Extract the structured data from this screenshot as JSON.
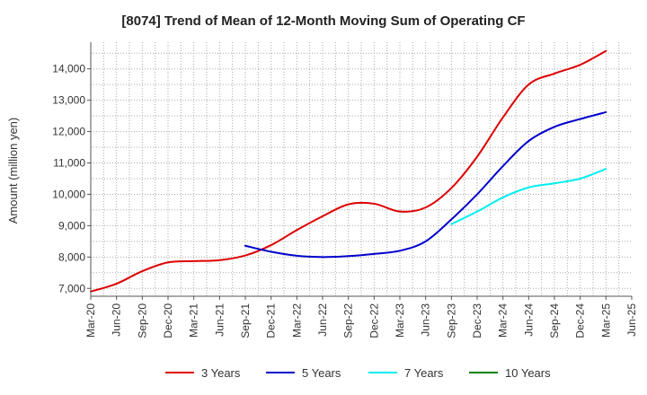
{
  "chart_data": {
    "type": "line",
    "title": "[8074]  Trend of Mean of 12-Month Moving Sum of Operating CF",
    "xlabel": "",
    "ylabel": "Amount (million yen)",
    "ylim": [
      6750,
      14850
    ],
    "yticks": [
      7000,
      8000,
      9000,
      10000,
      11000,
      12000,
      13000,
      14000
    ],
    "ytick_labels": [
      "7,000",
      "8,000",
      "9,000",
      "10,000",
      "11,000",
      "12,000",
      "13,000",
      "14,000"
    ],
    "x_tick_labels": [
      "Mar-20",
      "Jun-20",
      "Sep-20",
      "Dec-20",
      "Mar-21",
      "Jun-21",
      "Sep-21",
      "Dec-21",
      "Mar-22",
      "Jun-22",
      "Sep-22",
      "Dec-22",
      "Mar-23",
      "Jun-23",
      "Sep-23",
      "Dec-23",
      "Mar-24",
      "Jun-24",
      "Sep-24",
      "Dec-24",
      "Mar-25",
      "Jun-25"
    ],
    "grid": true,
    "legend_position": "bottom",
    "series": [
      {
        "name": "3 Years",
        "color": "#dd0000",
        "points": [
          [
            0,
            6900
          ],
          [
            1,
            7150
          ],
          [
            2,
            7550
          ],
          [
            3,
            7830
          ],
          [
            4,
            7870
          ],
          [
            5,
            7900
          ],
          [
            6,
            8050
          ],
          [
            7,
            8380
          ],
          [
            8,
            8860
          ],
          [
            9,
            9300
          ],
          [
            10,
            9680
          ],
          [
            11,
            9700
          ],
          [
            12,
            9450
          ],
          [
            13,
            9580
          ],
          [
            14,
            10200
          ],
          [
            15,
            11200
          ],
          [
            16,
            12450
          ],
          [
            17,
            13500
          ],
          [
            18,
            13850
          ],
          [
            19,
            14130
          ],
          [
            20,
            14570
          ]
        ]
      },
      {
        "name": "5 Years",
        "color": "#0000cc",
        "points": [
          [
            6,
            8360
          ],
          [
            7,
            8170
          ],
          [
            8,
            8040
          ],
          [
            9,
            8000
          ],
          [
            10,
            8030
          ],
          [
            11,
            8100
          ],
          [
            12,
            8200
          ],
          [
            13,
            8500
          ],
          [
            14,
            9200
          ],
          [
            15,
            10000
          ],
          [
            16,
            10900
          ],
          [
            17,
            11700
          ],
          [
            18,
            12150
          ],
          [
            19,
            12400
          ],
          [
            20,
            12620
          ]
        ]
      },
      {
        "name": "7 Years",
        "color": "#00eeee",
        "points": [
          [
            14,
            9050
          ],
          [
            15,
            9450
          ],
          [
            16,
            9900
          ],
          [
            17,
            10220
          ],
          [
            18,
            10350
          ],
          [
            19,
            10500
          ],
          [
            20,
            10810
          ]
        ]
      },
      {
        "name": "10 Years",
        "color": "#008000",
        "points": []
      }
    ]
  }
}
